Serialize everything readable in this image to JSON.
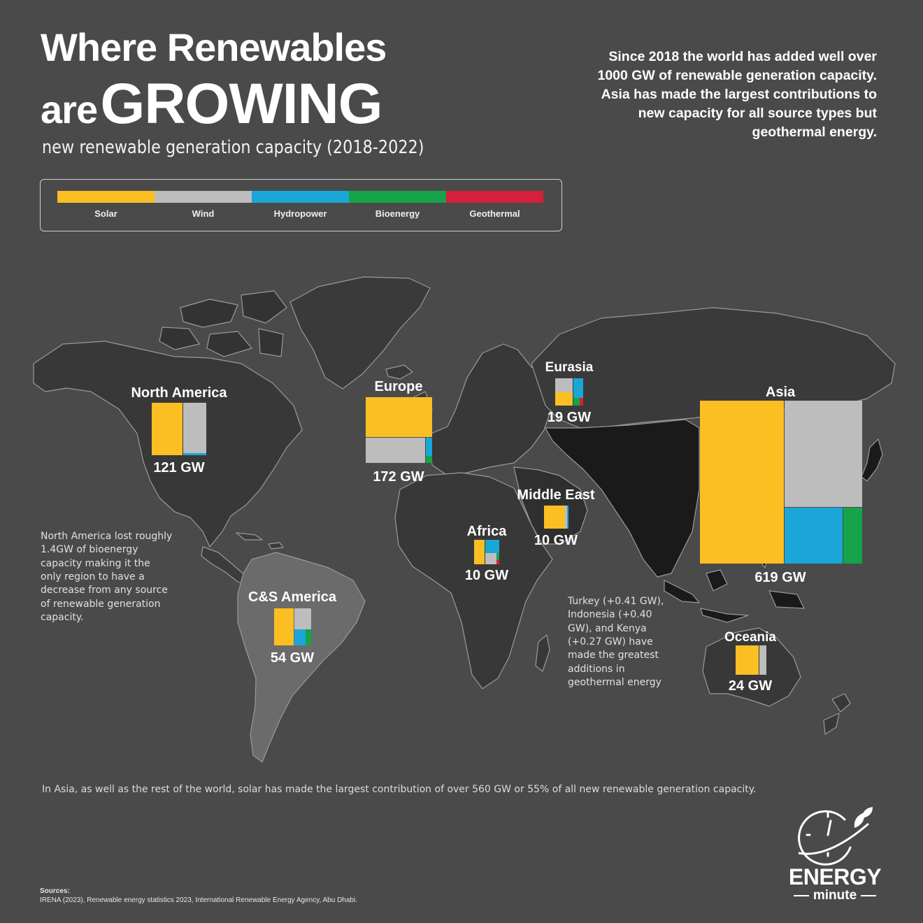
{
  "title": {
    "line1": "Where Renewables",
    "line2_small": "are",
    "line2_big": "GROWING",
    "subtitle": "new renewable generation capacity (2018-2022)"
  },
  "intro": "Since 2018 the world has added well over 1000 GW of renewable generation capacity. Asia has made the largest contributions to new capacity for all source types but geothermal energy.",
  "legend": [
    {
      "label": "Solar",
      "color": "#fbbf24"
    },
    {
      "label": "Wind",
      "color": "#bdbdbd"
    },
    {
      "label": "Hydropower",
      "color": "#1aa7d8"
    },
    {
      "label": "Bioenergy",
      "color": "#16a34a"
    },
    {
      "label": "Geothermal",
      "color": "#d61f3a"
    }
  ],
  "regions": {
    "north_america": {
      "name": "North America",
      "total": "121 GW"
    },
    "europe": {
      "name": "Europe",
      "total": "172 GW"
    },
    "eurasia": {
      "name": "Eurasia",
      "total": "19 GW"
    },
    "asia": {
      "name": "Asia",
      "total": "619 GW"
    },
    "middle_east": {
      "name": "Middle East",
      "total": "10 GW"
    },
    "africa": {
      "name": "Africa",
      "total": "10 GW"
    },
    "cs_america": {
      "name": "C&S America",
      "total": "54 GW"
    },
    "oceania": {
      "name": "Oceania",
      "total": "24 GW"
    }
  },
  "notes": {
    "north_america": "North America lost roughly 1.4GW of bioenergy capacity making it the only region to have a decrease from any source of renewable generation capacity.",
    "geothermal": "Turkey (+0.41 GW), Indonesia (+0.40 GW), and Kenya (+0.27 GW) have made the greatest additions in geothermal energy"
  },
  "footer": "In Asia, as well as the rest of the world, solar has made the largest contribution of over 560 GW or 55% of all new renewable generation capacity.",
  "sources": {
    "heading": "Sources:",
    "text": "IRENA (2023), Renewable energy statistics 2023, International Renewable Energy Agency, Abu Dhabi."
  },
  "logo": {
    "word1": "ENERGY",
    "word2": "minute"
  }
}
